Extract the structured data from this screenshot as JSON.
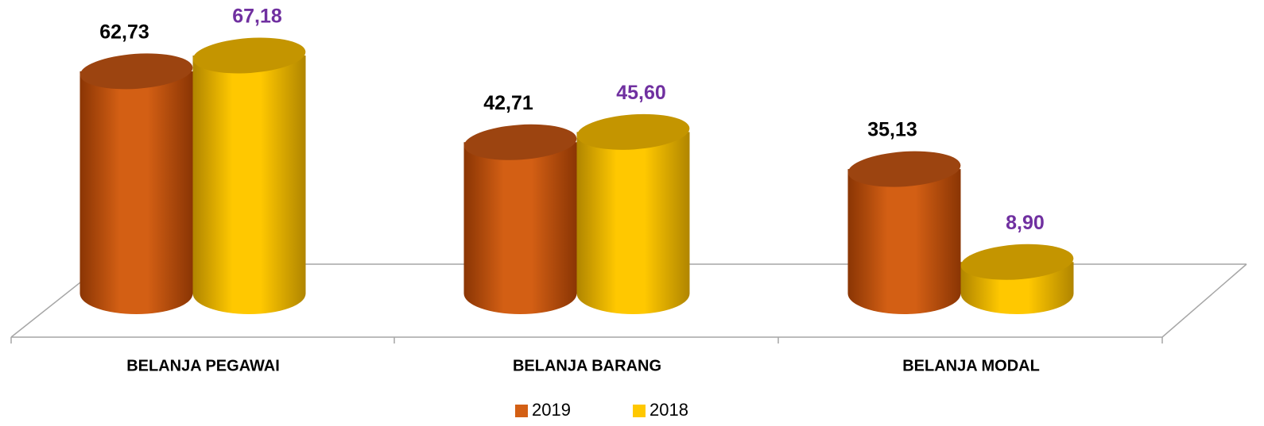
{
  "chart_data": {
    "type": "bar",
    "categories": [
      "BELANJA PEGAWAI",
      "BELANJA BARANG",
      "BELANJA MODAL"
    ],
    "series": [
      {
        "name": "2019",
        "color": "#d35f14",
        "values": [
          62.73,
          42.71,
          35.13
        ],
        "value_labels": [
          "62,73",
          "42,71",
          "35,13"
        ],
        "label_color": "#000000"
      },
      {
        "name": "2018",
        "color": "#ffc800",
        "values": [
          67.18,
          45.6,
          8.9
        ],
        "value_labels": [
          "67,18",
          "45,60",
          "8,90"
        ],
        "label_color": "#7030a0"
      }
    ],
    "legend": "bottom"
  }
}
